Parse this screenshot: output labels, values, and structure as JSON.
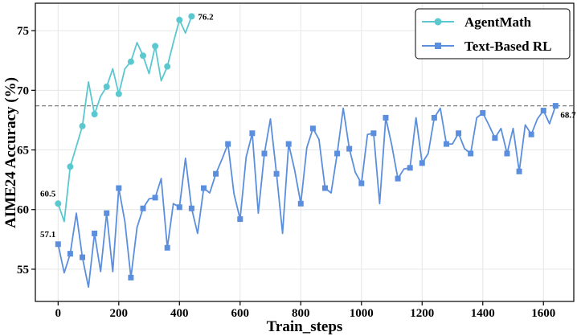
{
  "chart_data": {
    "type": "line",
    "title": "",
    "xlabel": "Train_steps",
    "ylabel": "AIME24 Accuracy (%)",
    "xlim": [
      -75,
      1700
    ],
    "ylim": [
      52.3,
      77.3
    ],
    "xticks": [
      0,
      200,
      400,
      600,
      800,
      1000,
      1200,
      1400,
      1600
    ],
    "yticks": [
      55,
      60,
      65,
      70,
      75
    ],
    "grid": true,
    "legend_position": "top-right",
    "reference_line": {
      "y": 68.7,
      "style": "dashed",
      "color": "#808080"
    },
    "series": [
      {
        "name": "AgentMath",
        "color": "#5bc8d0",
        "marker": "circle",
        "x": [
          0,
          20,
          40,
          60,
          80,
          100,
          120,
          140,
          160,
          180,
          200,
          220,
          240,
          260,
          280,
          300,
          320,
          340,
          360,
          380,
          400,
          420,
          440
        ],
        "y": [
          60.5,
          59.0,
          63.6,
          65.3,
          67.0,
          70.7,
          68.0,
          69.5,
          70.3,
          71.8,
          69.7,
          71.8,
          72.4,
          74.0,
          72.9,
          71.4,
          73.7,
          70.8,
          72.0,
          74.0,
          75.9,
          74.8,
          76.2
        ],
        "markers_x": [
          0,
          40,
          80,
          120,
          160,
          200,
          240,
          280,
          320,
          360,
          400,
          440
        ]
      },
      {
        "name": "Text-Based RL",
        "color": "#5b8fdd",
        "marker": "square",
        "x": [
          0,
          20,
          40,
          60,
          80,
          100,
          120,
          140,
          160,
          180,
          200,
          220,
          240,
          260,
          280,
          300,
          320,
          340,
          360,
          380,
          400,
          420,
          440,
          460,
          480,
          500,
          520,
          540,
          560,
          580,
          600,
          620,
          640,
          660,
          680,
          700,
          720,
          740,
          760,
          780,
          800,
          820,
          840,
          860,
          880,
          900,
          920,
          940,
          960,
          980,
          1000,
          1020,
          1040,
          1060,
          1080,
          1100,
          1120,
          1140,
          1160,
          1180,
          1200,
          1220,
          1240,
          1260,
          1280,
          1300,
          1320,
          1340,
          1360,
          1380,
          1400,
          1420,
          1440,
          1460,
          1480,
          1500,
          1520,
          1540,
          1560,
          1580,
          1600,
          1620,
          1640
        ],
        "y": [
          57.1,
          54.7,
          56.3,
          59.7,
          56.0,
          53.5,
          58.0,
          54.8,
          59.7,
          54.8,
          61.8,
          59.0,
          54.3,
          58.5,
          60.1,
          60.9,
          61.0,
          62.6,
          56.8,
          60.5,
          60.2,
          64.3,
          60.1,
          58.0,
          61.8,
          61.4,
          63.0,
          64.2,
          65.5,
          61.3,
          59.2,
          64.4,
          66.4,
          59.7,
          64.7,
          67.6,
          63.0,
          58.0,
          65.5,
          63.3,
          60.5,
          65.2,
          66.8,
          65.9,
          61.8,
          61.4,
          64.7,
          68.5,
          65.1,
          63.1,
          62.2,
          66.3,
          66.4,
          60.5,
          67.7,
          65.4,
          62.6,
          63.4,
          63.5,
          67.7,
          63.9,
          64.7,
          67.7,
          68.5,
          65.5,
          65.5,
          66.4,
          65.1,
          64.7,
          67.7,
          68.1,
          67.1,
          66.0,
          66.8,
          64.7,
          66.8,
          63.2,
          67.1,
          66.3,
          67.6,
          68.3,
          67.2,
          68.7
        ],
        "markers_x": [
          0,
          40,
          80,
          120,
          160,
          200,
          240,
          280,
          320,
          360,
          400,
          440,
          480,
          520,
          560,
          600,
          640,
          680,
          720,
          760,
          800,
          840,
          880,
          920,
          960,
          1000,
          1040,
          1080,
          1120,
          1160,
          1200,
          1240,
          1280,
          1320,
          1360,
          1400,
          1440,
          1480,
          1520,
          1560,
          1600,
          1640
        ]
      }
    ],
    "annotations": [
      {
        "text": "60.5",
        "series": 0,
        "point_index": 0,
        "anchor": "above-left"
      },
      {
        "text": "76.2",
        "series": 0,
        "point_index": 22,
        "anchor": "right"
      },
      {
        "text": "57.1",
        "series": 1,
        "point_index": 0,
        "anchor": "above-left"
      },
      {
        "text": "68.7",
        "series": 1,
        "point_index": 82,
        "anchor": "below-right"
      }
    ]
  }
}
